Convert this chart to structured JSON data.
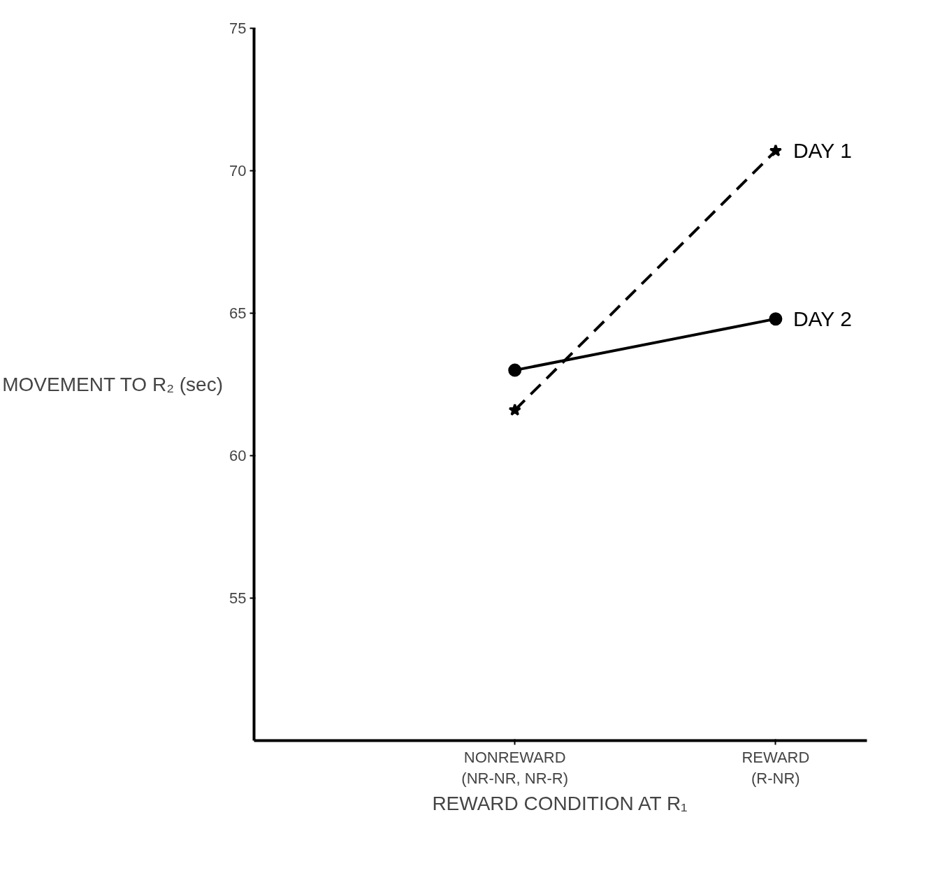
{
  "chart_data": {
    "type": "line",
    "xlabel": "REWARD CONDITION AT R₁",
    "ylabel": "MOVEMENT TO R₂ (sec)",
    "categories": [
      "NONREWARD\n(NR-NR, NR-R)",
      "REWARD\n(R-NR)"
    ],
    "series": [
      {
        "name": "DAY 1",
        "color": "#000000",
        "values": [
          61.6,
          70.7
        ],
        "marker": "star",
        "line_style": "dashed"
      },
      {
        "name": "DAY 2",
        "color": "#000000",
        "values": [
          63.0,
          64.8
        ],
        "marker": "circle",
        "line_style": "solid"
      }
    ],
    "ylim": [
      50,
      75
    ],
    "yticks": [
      55,
      60,
      65,
      70,
      75
    ],
    "grid": false
  }
}
